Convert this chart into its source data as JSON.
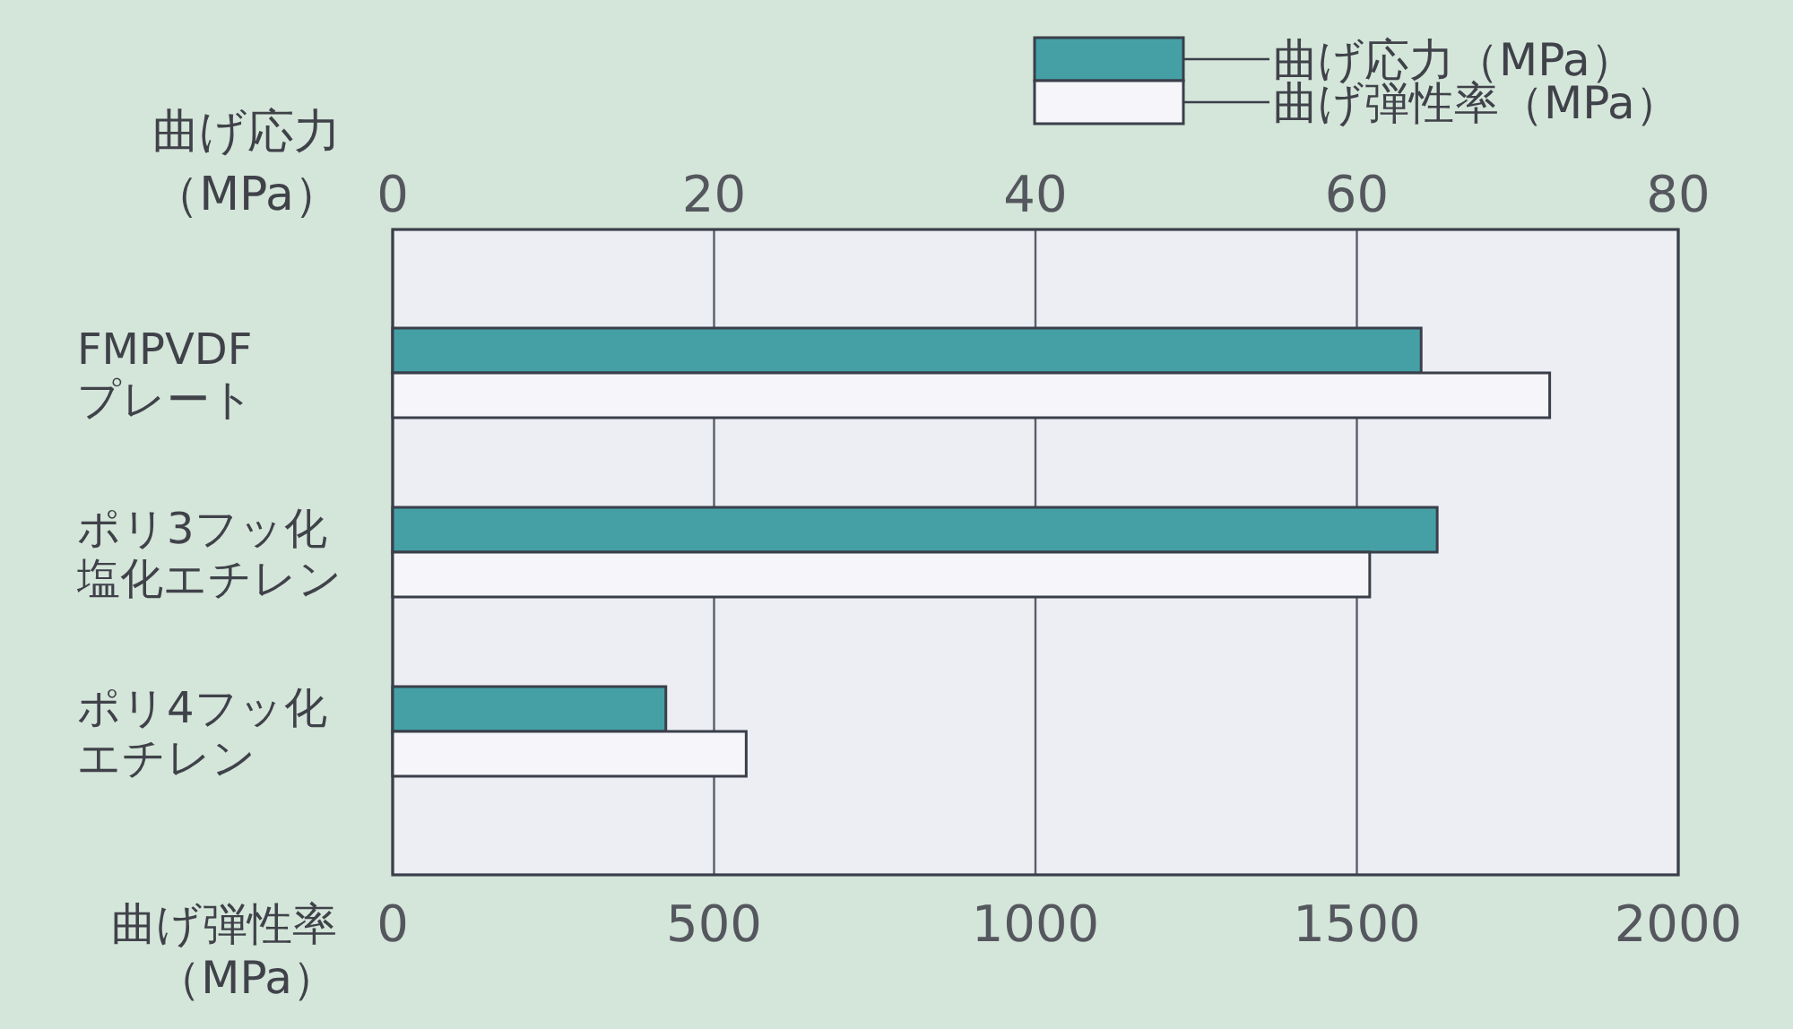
{
  "chart_data": {
    "type": "bar",
    "orientation": "horizontal",
    "categories": [
      "FMPVDF プレート",
      "ポリ3フッ化塩化エチレン",
      "ポリ4フッ化エチレン"
    ],
    "series": [
      {
        "name": "曲げ応力（MPa）",
        "color": "#45a0a6",
        "axis": "x2",
        "values": [
          64,
          65,
          17
        ]
      },
      {
        "name": "曲げ弾性率（MPa）",
        "color": "#f6f6fa",
        "values": [
          1800,
          1520,
          550
        ]
      }
    ],
    "xlim": [
      0,
      2000
    ],
    "xticks": [
      0,
      500,
      1000,
      1500,
      2000
    ],
    "xlabel": "曲げ弾性率（MPa）",
    "x2lim": [
      0,
      80
    ],
    "x2ticks": [
      0,
      20,
      40,
      60,
      80
    ],
    "x2label": "曲げ応力（MPa）",
    "grid": "x",
    "legend": "top right"
  }
}
